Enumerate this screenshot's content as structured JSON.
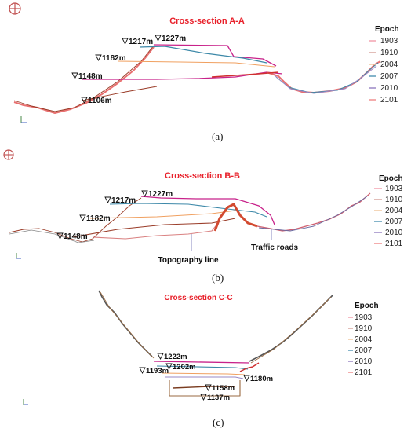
{
  "legend": {
    "title": "Epoch",
    "epochs": [
      {
        "label": "1903",
        "color": "#f2a2b0"
      },
      {
        "label": "1910",
        "color": "#d9a7a0"
      },
      {
        "label": "2004",
        "color": "#f0c8a0"
      },
      {
        "label": "2007",
        "color": "#5b9bb8"
      },
      {
        "label": "2010",
        "color": "#9a88c6"
      },
      {
        "label": "2101",
        "color": "#f09090"
      }
    ]
  },
  "panel_a": {
    "title": "Cross-section A-A",
    "caption": "(a)",
    "elevations": [
      "1227m",
      "1217m",
      "1182m",
      "1148m",
      "1106m"
    ]
  },
  "panel_b": {
    "title": "Cross-section B-B",
    "caption": "(b)",
    "elevations": [
      "1227m",
      "1217m",
      "1182m",
      "1148m"
    ],
    "annotations": {
      "topography": "Topography line",
      "roads": "Traffic roads"
    }
  },
  "panel_c": {
    "title": "Cross-section C-C",
    "caption": "(c)",
    "elevations": [
      "1222m",
      "1202m",
      "1193m",
      "1180m",
      "1158m",
      "1137m"
    ]
  },
  "colors": {
    "title_red": "#e8202a",
    "line_magenta": "#c8228a",
    "line_blue": "#3c88a8",
    "line_orange": "#f0a060",
    "line_brown": "#9a3c28",
    "line_pink": "#e87070"
  }
}
